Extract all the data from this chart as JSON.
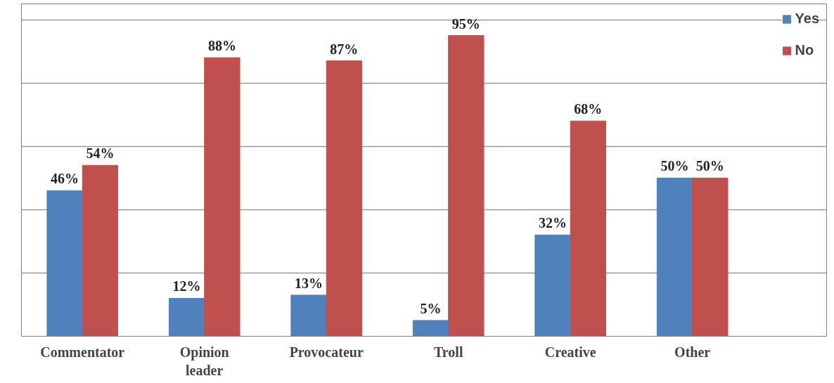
{
  "chart_data": {
    "type": "bar",
    "categories": [
      "Commentator",
      "Opinion\nleader",
      "Provocateur",
      "Troll",
      "Creative",
      "Other"
    ],
    "series": [
      {
        "name": "Yes",
        "color": "#4f81bd",
        "values": [
          46,
          12,
          13,
          5,
          32,
          50
        ],
        "value_labels": [
          "46%",
          "12%",
          "13%",
          "5%",
          "32%",
          "50%"
        ]
      },
      {
        "name": "No",
        "color": "#c0504d",
        "values": [
          54,
          88,
          87,
          95,
          68,
          50
        ],
        "value_labels": [
          "54%",
          "88%",
          "87%",
          "95%",
          "68%",
          "50%"
        ]
      }
    ],
    "ylim": [
      0,
      105
    ],
    "yticks": [
      {
        "value": 0,
        "label": null
      },
      {
        "value": 20,
        "label": null
      },
      {
        "value": 40,
        "label": null
      },
      {
        "value": 60,
        "label": null
      },
      {
        "value": 80,
        "label": null
      },
      {
        "value": 100,
        "label": null
      }
    ],
    "tick_labels": "x",
    "grid": "y",
    "legend": "right"
  }
}
